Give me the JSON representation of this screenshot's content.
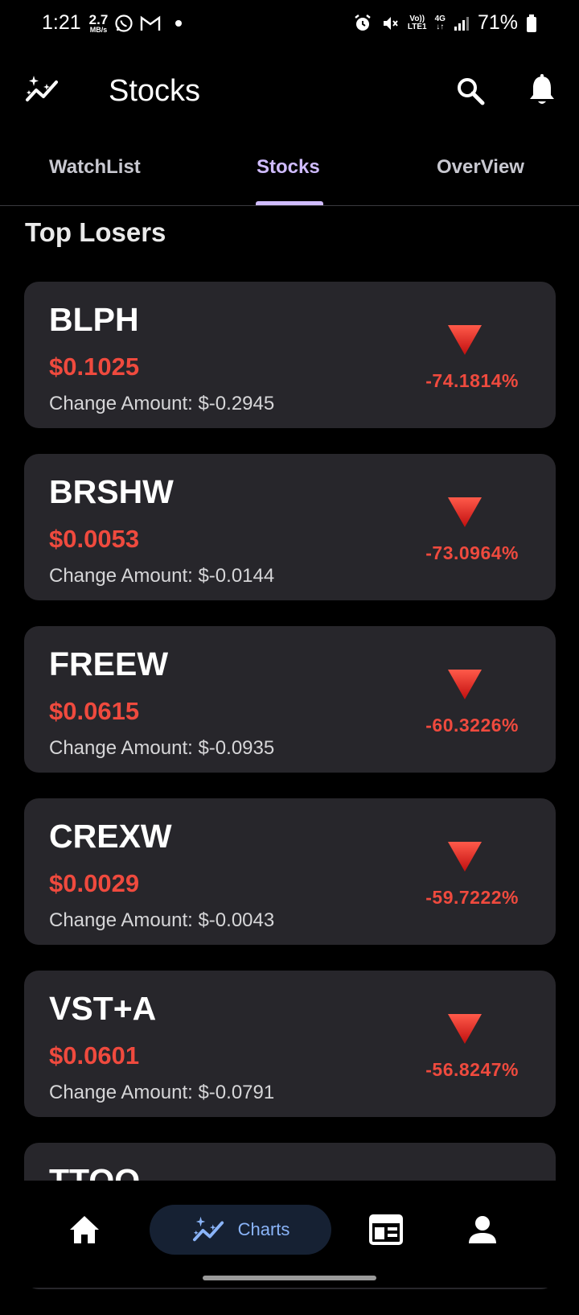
{
  "status": {
    "time": "1:21",
    "net_speed": "2.7",
    "net_unit": "MB/s",
    "volte": "Vo))",
    "lte": "LTE1",
    "network": "4G",
    "battery": "71%"
  },
  "app_bar": {
    "title": "Stocks"
  },
  "tabs": [
    {
      "label": "WatchList",
      "active": false
    },
    {
      "label": "Stocks",
      "active": true
    },
    {
      "label": "OverView",
      "active": false
    }
  ],
  "section_title": "Top Losers",
  "stocks": [
    {
      "symbol": "BLPH",
      "price": "$0.1025",
      "change_amount": "Change Amount: $-0.2945",
      "change_percent": "-74.1814%"
    },
    {
      "symbol": "BRSHW",
      "price": "$0.0053",
      "change_amount": "Change Amount: $-0.0144",
      "change_percent": "-73.0964%"
    },
    {
      "symbol": "FREEW",
      "price": "$0.0615",
      "change_amount": "Change Amount: $-0.0935",
      "change_percent": "-60.3226%"
    },
    {
      "symbol": "CREXW",
      "price": "$0.0029",
      "change_amount": "Change Amount: $-0.0043",
      "change_percent": "-59.7222%"
    },
    {
      "symbol": "VST+A",
      "price": "$0.0601",
      "change_amount": "Change Amount: $-0.0791",
      "change_percent": "-56.8247%"
    },
    {
      "symbol": "TTOO",
      "price": "",
      "change_amount": "",
      "change_percent": ""
    }
  ],
  "bottom_nav": {
    "charts_label": "Charts",
    "items": [
      "home-icon",
      "charts-icon",
      "news-icon",
      "profile-icon"
    ]
  },
  "colors": {
    "accent": "#d0bcff",
    "loss": "#ef4a3e",
    "card": "#27262b",
    "nav_active_bg": "#162133",
    "nav_active_fg": "#8ab4f8"
  }
}
